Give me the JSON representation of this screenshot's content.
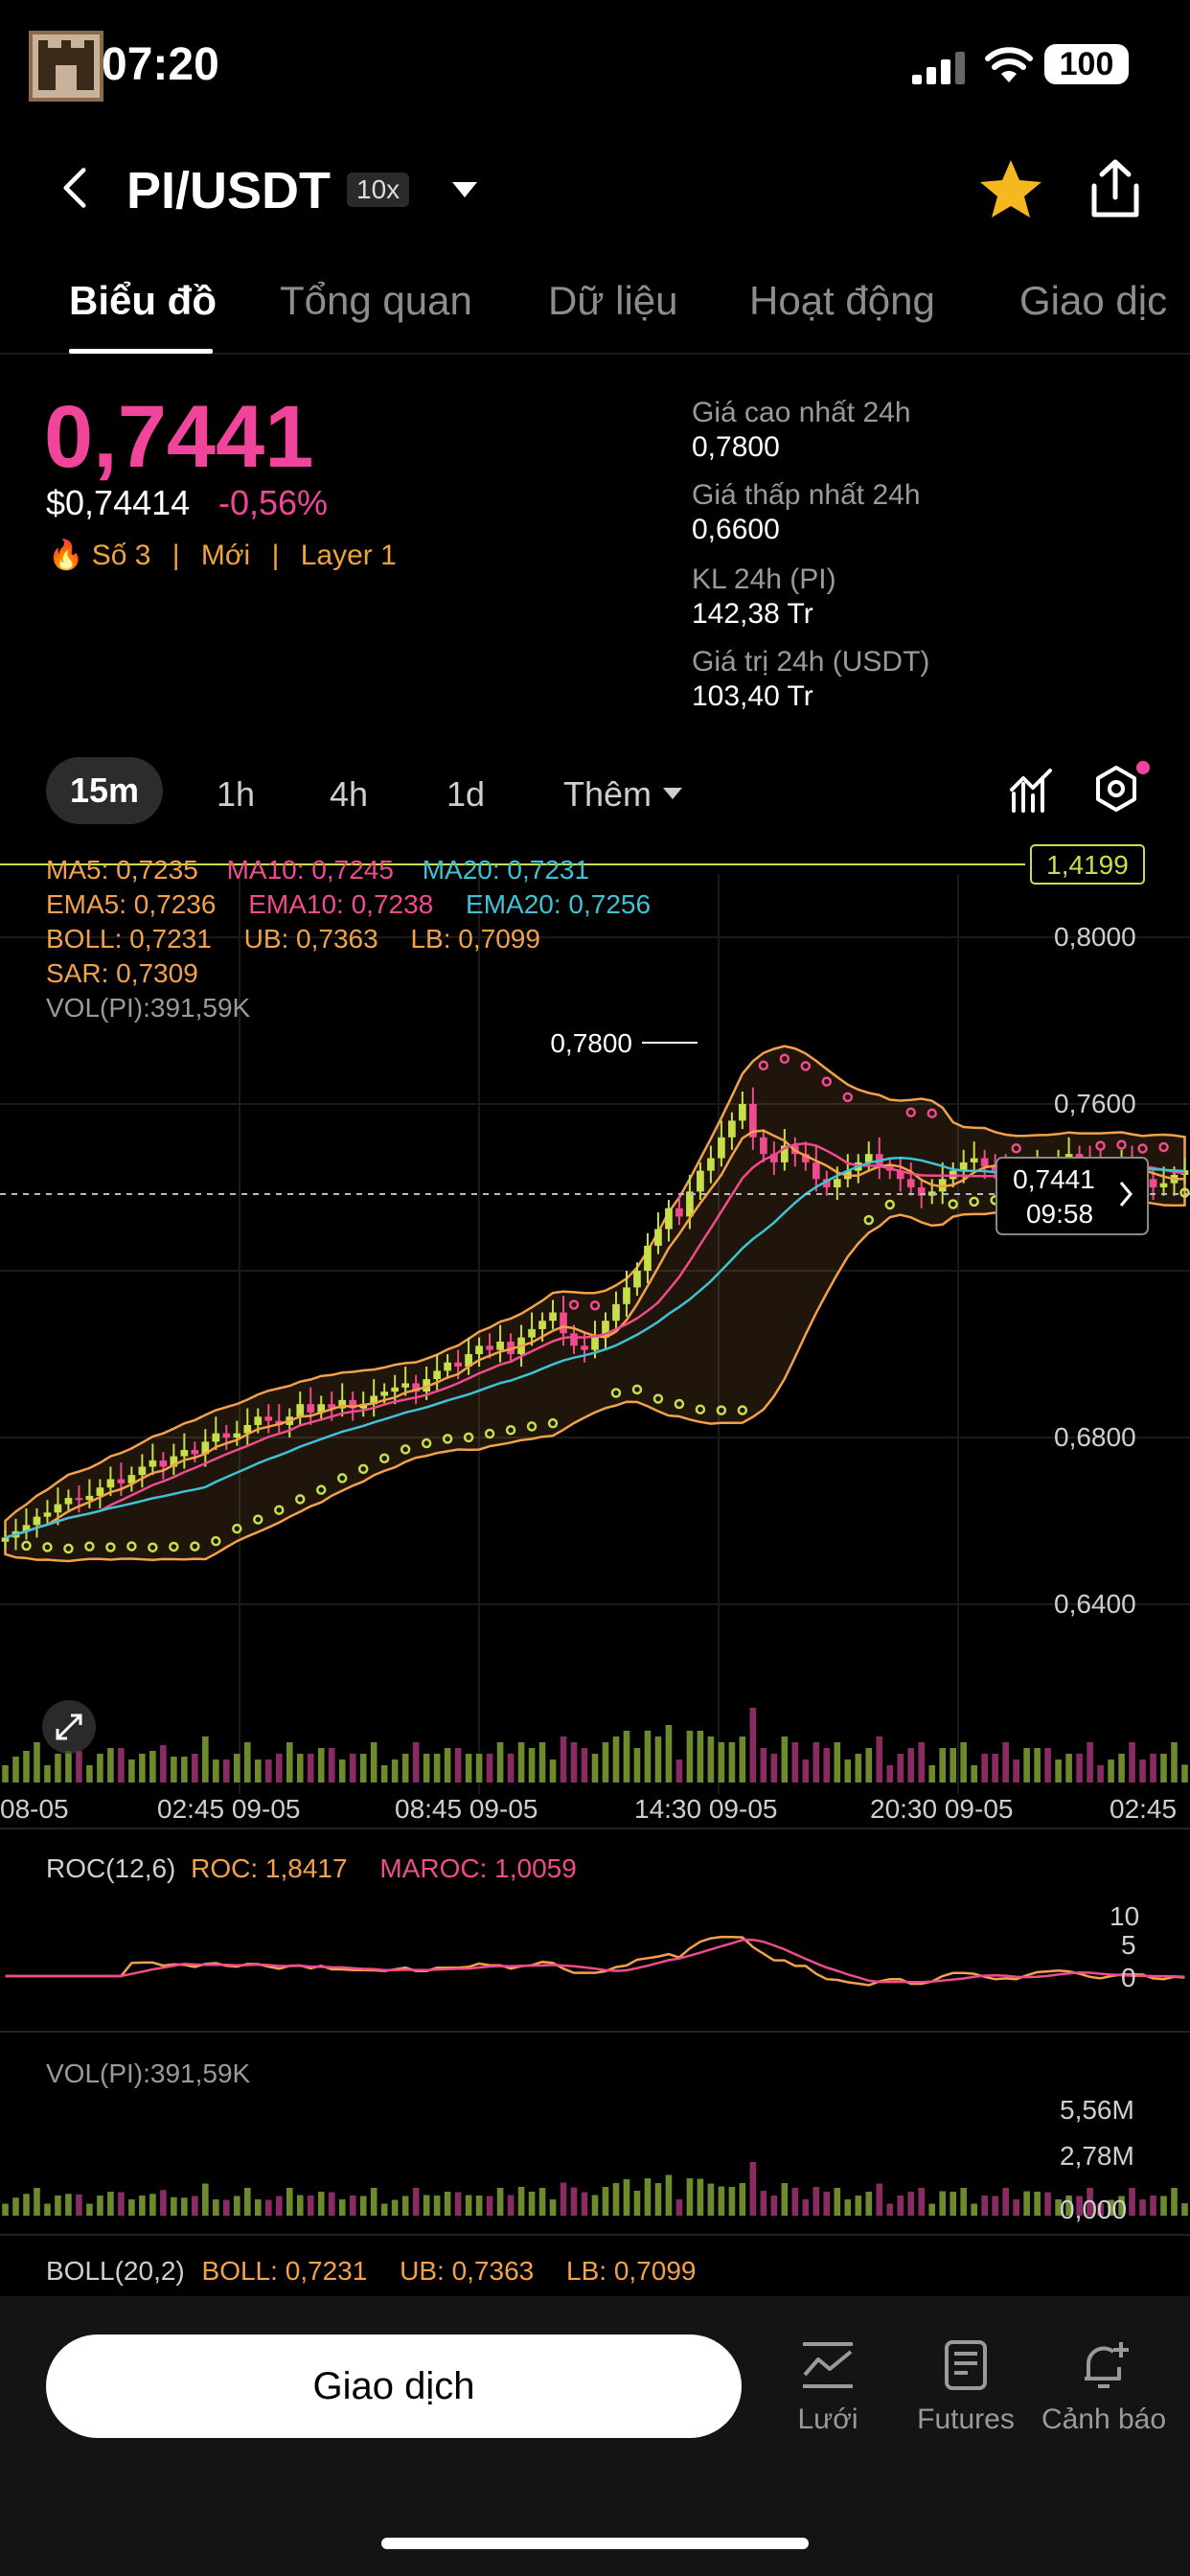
{
  "status_bar": {
    "time": "07:20",
    "battery": "100"
  },
  "header": {
    "pair": "PI/USDT",
    "leverage": "10x"
  },
  "tabs": [
    {
      "label": "Biểu đồ",
      "active": true
    },
    {
      "label": "Tổng quan"
    },
    {
      "label": "Dữ liệu"
    },
    {
      "label": "Hoạt động"
    },
    {
      "label": "Giao dịc"
    }
  ],
  "price": {
    "last": "0,7441",
    "usd": "$0,74414",
    "change": "-0,56%",
    "tags": [
      "🔥 Số 3",
      "|",
      "Mới",
      "|",
      "Layer 1"
    ]
  },
  "stats": [
    {
      "label": "Giá cao nhất 24h",
      "value": "0,7800"
    },
    {
      "label": "Giá thấp nhất 24h",
      "value": "0,6600"
    },
    {
      "label": "KL 24h (PI)",
      "value": "142,38 Tr"
    },
    {
      "label": "Giá trị 24h (USDT)",
      "value": "103,40 Tr"
    }
  ],
  "timeframes": {
    "selected": "15m",
    "others": [
      "1h",
      "4h",
      "1d"
    ],
    "more": "Thêm"
  },
  "indicators": {
    "ma": [
      {
        "text": "MA5: 0,7235",
        "color": "#f3a24a"
      },
      {
        "text": "MA10: 0,7245",
        "color": "#ef4b8e"
      },
      {
        "text": "MA20: 0,7231",
        "color": "#3ec3d6"
      }
    ],
    "ema": [
      {
        "text": "EMA5: 0,7236",
        "color": "#f3a24a"
      },
      {
        "text": "EMA10: 0,7238",
        "color": "#ef4b8e"
      },
      {
        "text": "EMA20: 0,7256",
        "color": "#3ec3d6"
      }
    ],
    "boll": [
      {
        "text": "BOLL: 0,7231",
        "color": "#f3a24a"
      },
      {
        "text": "UB: 0,7363",
        "color": "#f3a24a"
      },
      {
        "text": "LB: 0,7099",
        "color": "#f3a24a"
      }
    ],
    "sar": "SAR: 0,7309",
    "vol": "VOL(PI):391,59K",
    "roc_label": "ROC(12,6)",
    "roc": "ROC: 1,8417",
    "maroc": "MAROC: 1,0059",
    "vol2": "VOL(PI):391,59K",
    "boll_label": "BOLL(20,2)",
    "boll2": "BOLL: 0,7231",
    "ub2": "UB: 0,7363",
    "lb2": "LB: 0,7099"
  },
  "chart_data": {
    "type": "candlestick",
    "x_ticks": [
      "08-05",
      "02:45 09-05",
      "08:45 09-05",
      "14:30 09-05",
      "20:30 09-05",
      "02:45"
    ],
    "y_ticks": [
      "0,8000",
      "0,7600",
      "0,6800",
      "0,6400"
    ],
    "current_price": "0,7441",
    "countdown": "09:58",
    "max_label": "0,7800",
    "top_line": "1,4199",
    "close": [
      0.656,
      0.6575,
      0.659,
      0.661,
      0.662,
      0.664,
      0.6655,
      0.665,
      0.666,
      0.668,
      0.67,
      0.669,
      0.671,
      0.673,
      0.6745,
      0.673,
      0.6755,
      0.677,
      0.676,
      0.679,
      0.681,
      0.68,
      0.681,
      0.683,
      0.685,
      0.684,
      0.683,
      0.685,
      0.688,
      0.686,
      0.688,
      0.687,
      0.689,
      0.687,
      0.688,
      0.69,
      0.691,
      0.692,
      0.693,
      0.691,
      0.694,
      0.696,
      0.698,
      0.697,
      0.7,
      0.702,
      0.701,
      0.703,
      0.7,
      0.704,
      0.706,
      0.708,
      0.71,
      0.705,
      0.702,
      0.701,
      0.704,
      0.708,
      0.712,
      0.716,
      0.72,
      0.726,
      0.73,
      0.735,
      0.733,
      0.739,
      0.744,
      0.747,
      0.752,
      0.756,
      0.76,
      0.752,
      0.748,
      0.746,
      0.75,
      0.748,
      0.746,
      0.742,
      0.74,
      0.742,
      0.744,
      0.746,
      0.748,
      0.745,
      0.744,
      0.742,
      0.74,
      0.738,
      0.739,
      0.742,
      0.744,
      0.746,
      0.747,
      0.745,
      0.744,
      0.742,
      0.74,
      0.743,
      0.745,
      0.744,
      0.746,
      0.748,
      0.747,
      0.745,
      0.744,
      0.745,
      0.746,
      0.744,
      0.742,
      0.74,
      0.741,
      0.743,
      0.7441
    ],
    "roc_ticks": [
      "10",
      "5",
      "0"
    ],
    "vol_ticks": [
      "5,56M",
      "2,78M",
      "0,000"
    ]
  },
  "bottom_nav": {
    "trade": "Giao dịch",
    "items": [
      {
        "label": "Lưới",
        "icon": "grid-chart-icon"
      },
      {
        "label": "Futures",
        "icon": "futures-icon"
      },
      {
        "label": "Cảnh báo",
        "icon": "alert-bell-icon"
      }
    ]
  }
}
